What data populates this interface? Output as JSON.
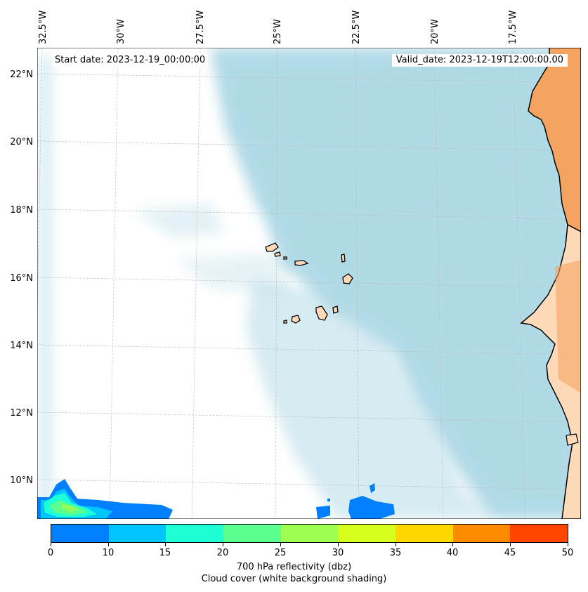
{
  "map": {
    "start_date": "Start date: 2023-12-19_00:00:00",
    "valid_date": "Valid_date: 2023-12-19T12:00:00.00",
    "lon_labels": [
      "32.5°W",
      "30°W",
      "27.5°W",
      "25°W",
      "22.5°W",
      "20°W",
      "17.5°W"
    ],
    "lat_labels": [
      "22°N",
      "20°N",
      "18°N",
      "16°N",
      "14°N",
      "12°N",
      "10°N"
    ],
    "colors": {
      "ocean": "#ffffff",
      "cloud": "#add8e6",
      "land_desert": "#f4a460",
      "land_light": "#ffdab9",
      "coast": "#000000",
      "grid": "#b0b0b0"
    }
  },
  "colorbar": {
    "ticks": [
      "0",
      "10",
      "15",
      "20",
      "25",
      "30",
      "35",
      "40",
      "45",
      "50"
    ],
    "colors": [
      "#0080ff",
      "#00c5ff",
      "#1effd5",
      "#5aff8e",
      "#9cff52",
      "#d6ff1e",
      "#ffd700",
      "#ff8c00",
      "#ff4500"
    ],
    "label_line1": "700 hPa reflectivity (dbz)",
    "label_line2": "Cloud cover (white background shading)"
  }
}
